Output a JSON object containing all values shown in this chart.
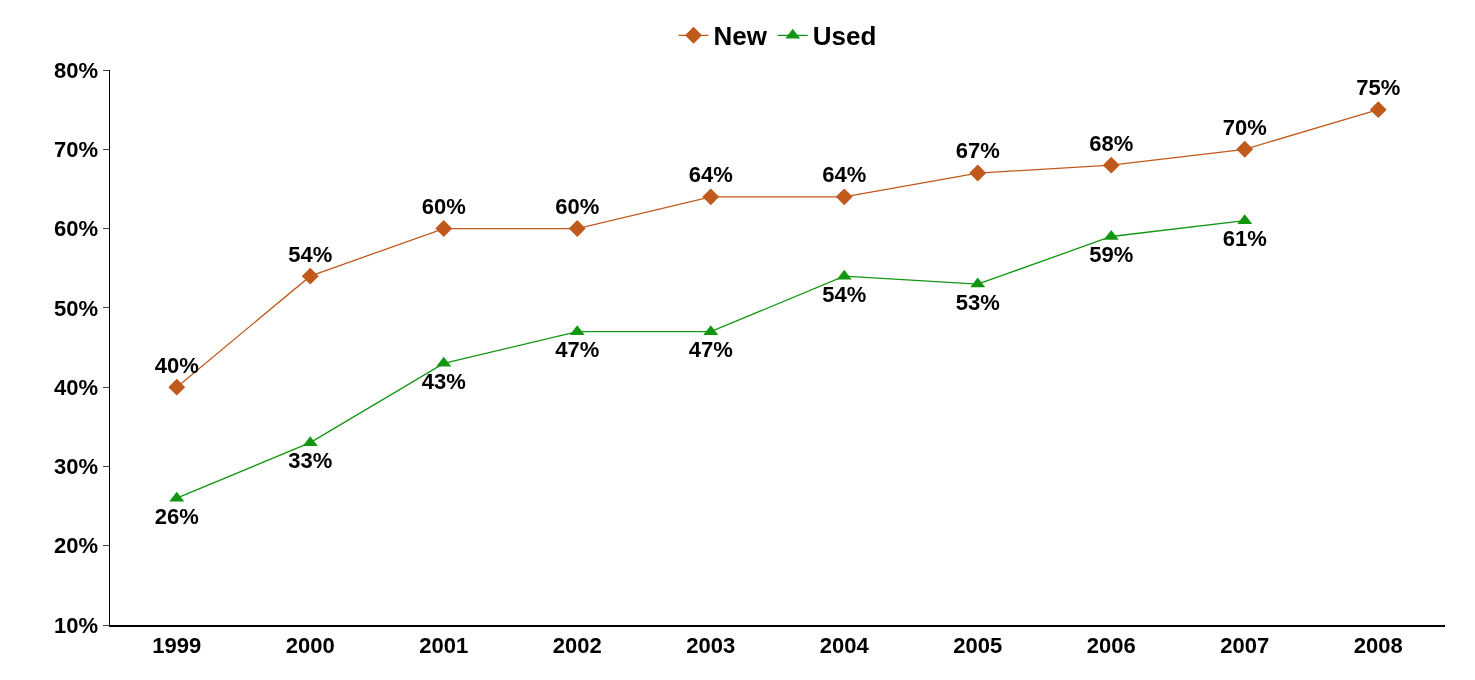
{
  "chart_data": {
    "type": "line",
    "categories": [
      "1999",
      "2000",
      "2001",
      "2002",
      "2003",
      "2004",
      "2005",
      "2006",
      "2007",
      "2008"
    ],
    "series": [
      {
        "name": "New",
        "color": "#c05a1c",
        "marker": "diamond",
        "values": [
          40,
          54,
          60,
          60,
          64,
          64,
          67,
          68,
          70,
          75
        ],
        "value_labels": [
          "40%",
          "54%",
          "60%",
          "60%",
          "64%",
          "64%",
          "67%",
          "68%",
          "70%",
          "75%"
        ]
      },
      {
        "name": "Used",
        "color": "#129612",
        "marker": "triangle",
        "values": [
          26,
          33,
          43,
          47,
          47,
          54,
          53,
          59,
          61,
          null
        ],
        "value_labels": [
          "26%",
          "33%",
          "43%",
          "47%",
          "47%",
          "54%",
          "53%",
          "59%",
          "61%",
          null
        ]
      }
    ],
    "ylim": [
      10,
      80
    ],
    "yticks": [
      {
        "value": 10,
        "label": "10%"
      },
      {
        "value": 20,
        "label": "20%"
      },
      {
        "value": 30,
        "label": "30%"
      },
      {
        "value": 40,
        "label": "40%"
      },
      {
        "value": 50,
        "label": "50%"
      },
      {
        "value": 60,
        "label": "60%"
      },
      {
        "value": 70,
        "label": "70%"
      },
      {
        "value": 80,
        "label": "80%"
      }
    ],
    "grid": false,
    "legend": "top"
  }
}
